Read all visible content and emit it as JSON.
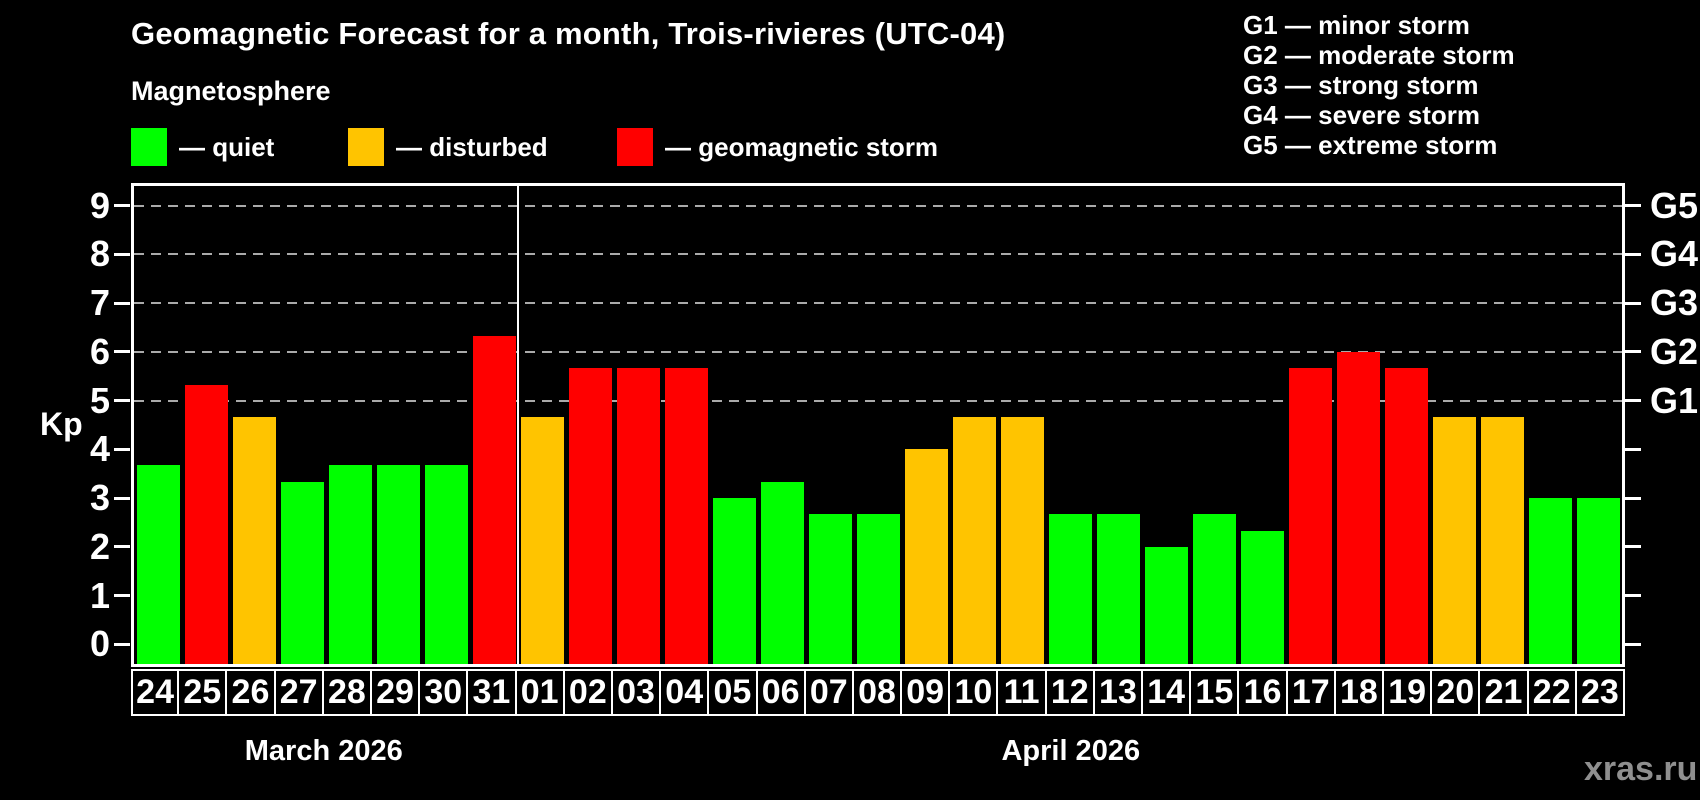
{
  "title": "Geomagnetic Forecast for a month, Trois-rivieres (UTC-04)",
  "subtitle": "Magnetosphere",
  "legend": {
    "items": [
      {
        "label": "— quiet",
        "color": "#00ff00"
      },
      {
        "label": "— disturbed",
        "color": "#ffc400"
      },
      {
        "label": "— geomagnetic storm",
        "color": "#ff0000"
      }
    ]
  },
  "g_legend": [
    "G1 — minor storm",
    "G2 — moderate storm",
    "G3 — strong storm",
    "G4 — severe storm",
    "G5 — extreme storm"
  ],
  "watermark": "xras.ru",
  "chart_data": {
    "type": "bar",
    "ylabel": "Kp",
    "ylim": [
      -0.4,
      9.4
    ],
    "y_ticks": [
      0,
      1,
      2,
      3,
      4,
      5,
      6,
      7,
      8,
      9
    ],
    "g_scale": {
      "5": "G1",
      "6": "G2",
      "7": "G3",
      "8": "G4",
      "9": "G5"
    },
    "gridlines_at": [
      5,
      6,
      7,
      8,
      9
    ],
    "grid": "dashed-horizontal-on-storm-levels",
    "legend_position": "top-left",
    "level_colors": {
      "quiet": "#00ff00",
      "disturbed": "#ffc400",
      "storm": "#ff0000"
    },
    "months": [
      {
        "label": "March 2026",
        "days": 8
      },
      {
        "label": "April 2026",
        "days": 23
      }
    ],
    "points": [
      {
        "date": "24",
        "month": "March 2026",
        "kp": 3.67,
        "level": "quiet"
      },
      {
        "date": "25",
        "month": "March 2026",
        "kp": 5.33,
        "level": "storm"
      },
      {
        "date": "26",
        "month": "March 2026",
        "kp": 4.67,
        "level": "disturbed"
      },
      {
        "date": "27",
        "month": "March 2026",
        "kp": 3.33,
        "level": "quiet"
      },
      {
        "date": "28",
        "month": "March 2026",
        "kp": 3.67,
        "level": "quiet"
      },
      {
        "date": "29",
        "month": "March 2026",
        "kp": 3.67,
        "level": "quiet"
      },
      {
        "date": "30",
        "month": "March 2026",
        "kp": 3.67,
        "level": "quiet"
      },
      {
        "date": "31",
        "month": "March 2026",
        "kp": 6.33,
        "level": "storm"
      },
      {
        "date": "01",
        "month": "April 2026",
        "kp": 4.67,
        "level": "disturbed"
      },
      {
        "date": "02",
        "month": "April 2026",
        "kp": 5.67,
        "level": "storm"
      },
      {
        "date": "03",
        "month": "April 2026",
        "kp": 5.67,
        "level": "storm"
      },
      {
        "date": "04",
        "month": "April 2026",
        "kp": 5.67,
        "level": "storm"
      },
      {
        "date": "05",
        "month": "April 2026",
        "kp": 3.0,
        "level": "quiet"
      },
      {
        "date": "06",
        "month": "April 2026",
        "kp": 3.33,
        "level": "quiet"
      },
      {
        "date": "07",
        "month": "April 2026",
        "kp": 2.67,
        "level": "quiet"
      },
      {
        "date": "08",
        "month": "April 2026",
        "kp": 2.67,
        "level": "quiet"
      },
      {
        "date": "09",
        "month": "April 2026",
        "kp": 4.0,
        "level": "disturbed"
      },
      {
        "date": "10",
        "month": "April 2026",
        "kp": 4.67,
        "level": "disturbed"
      },
      {
        "date": "11",
        "month": "April 2026",
        "kp": 4.67,
        "level": "disturbed"
      },
      {
        "date": "12",
        "month": "April 2026",
        "kp": 2.67,
        "level": "quiet"
      },
      {
        "date": "13",
        "month": "April 2026",
        "kp": 2.67,
        "level": "quiet"
      },
      {
        "date": "14",
        "month": "April 2026",
        "kp": 2.0,
        "level": "quiet"
      },
      {
        "date": "15",
        "month": "April 2026",
        "kp": 2.67,
        "level": "quiet"
      },
      {
        "date": "16",
        "month": "April 2026",
        "kp": 2.33,
        "level": "quiet"
      },
      {
        "date": "17",
        "month": "April 2026",
        "kp": 5.67,
        "level": "storm"
      },
      {
        "date": "18",
        "month": "April 2026",
        "kp": 6.0,
        "level": "storm"
      },
      {
        "date": "19",
        "month": "April 2026",
        "kp": 5.67,
        "level": "storm"
      },
      {
        "date": "20",
        "month": "April 2026",
        "kp": 4.67,
        "level": "disturbed"
      },
      {
        "date": "21",
        "month": "April 2026",
        "kp": 4.67,
        "level": "disturbed"
      },
      {
        "date": "22",
        "month": "April 2026",
        "kp": 3.0,
        "level": "quiet"
      },
      {
        "date": "23",
        "month": "April 2026",
        "kp": 3.0,
        "level": "quiet"
      }
    ]
  }
}
